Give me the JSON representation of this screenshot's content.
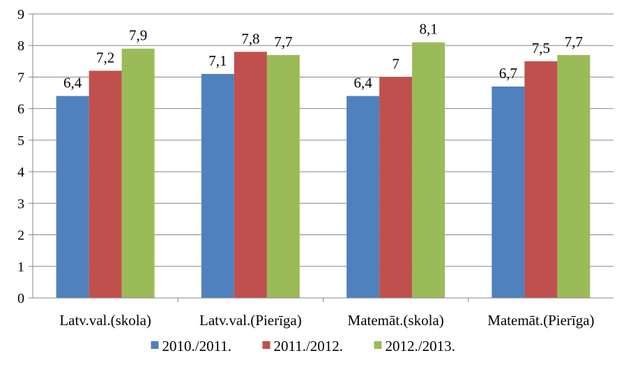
{
  "chart_data": {
    "type": "bar",
    "categories": [
      "Latv.val.(skola)",
      "Latv.val.(Pierīga)",
      "Matemāt.(skola)",
      "Matemāt.(Pierīga)"
    ],
    "series": [
      {
        "name": "2010./2011.",
        "color": "#4F81BD",
        "values": [
          6.4,
          7.1,
          6.4,
          6.7
        ],
        "labels": [
          "6,4",
          "7,1",
          "6,4",
          "6,7"
        ]
      },
      {
        "name": "2011./2012.",
        "color": "#C0504D",
        "values": [
          7.2,
          7.8,
          7.0,
          7.5
        ],
        "labels": [
          "7,2",
          "7,8",
          "7",
          "7,5"
        ]
      },
      {
        "name": "2012./2013.",
        "color": "#9BBB59",
        "values": [
          7.9,
          7.7,
          8.1,
          7.7
        ],
        "labels": [
          "7,9",
          "7,7",
          "8,1",
          "7,7"
        ]
      }
    ],
    "ylim": [
      0,
      9
    ],
    "yticks": [
      "0",
      "1",
      "2",
      "3",
      "4",
      "5",
      "6",
      "7",
      "8",
      "9"
    ],
    "grid": true,
    "legend": "bottom",
    "title": "",
    "xlabel": "",
    "ylabel": ""
  }
}
